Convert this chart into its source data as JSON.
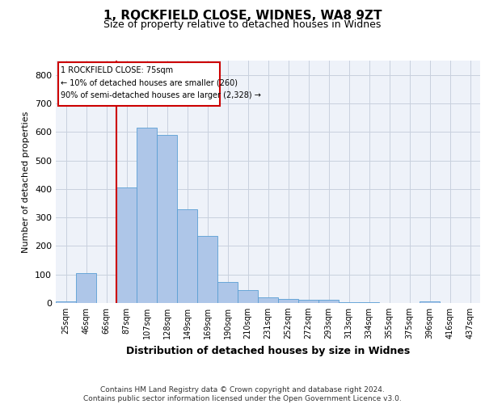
{
  "title1": "1, ROCKFIELD CLOSE, WIDNES, WA8 9ZT",
  "title2": "Size of property relative to detached houses in Widnes",
  "xlabel": "Distribution of detached houses by size in Widnes",
  "ylabel": "Number of detached properties",
  "categories": [
    "25sqm",
    "46sqm",
    "66sqm",
    "87sqm",
    "107sqm",
    "128sqm",
    "149sqm",
    "169sqm",
    "190sqm",
    "210sqm",
    "231sqm",
    "252sqm",
    "272sqm",
    "293sqm",
    "313sqm",
    "334sqm",
    "355sqm",
    "375sqm",
    "396sqm",
    "416sqm",
    "437sqm"
  ],
  "values": [
    5,
    105,
    0,
    405,
    615,
    590,
    330,
    235,
    75,
    45,
    20,
    13,
    12,
    12,
    3,
    2,
    0,
    0,
    5,
    0,
    0
  ],
  "bar_color": "#aec6e8",
  "bar_edge_color": "#5a9fd4",
  "vline_color": "#cc0000",
  "annotation_text": "1 ROCKFIELD CLOSE: 75sqm\n← 10% of detached houses are smaller (260)\n90% of semi-detached houses are larger (2,328) →",
  "annotation_box_color": "#ffffff",
  "annotation_box_edge_color": "#cc0000",
  "ylim": [
    0,
    850
  ],
  "yticks": [
    0,
    100,
    200,
    300,
    400,
    500,
    600,
    700,
    800
  ],
  "footer": "Contains HM Land Registry data © Crown copyright and database right 2024.\nContains public sector information licensed under the Open Government Licence v3.0.",
  "background_color": "#eef2f9",
  "title_fontsize": 11,
  "subtitle_fontsize": 9,
  "tick_fontsize": 7,
  "footer_fontsize": 6.5
}
